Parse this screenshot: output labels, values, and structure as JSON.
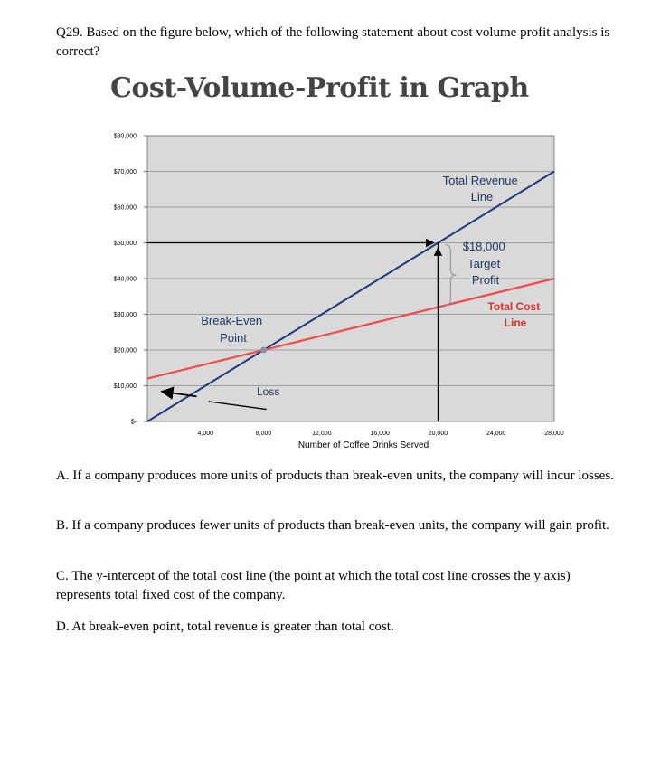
{
  "question": {
    "text": "Q29.  Based on the figure below, which of the following statement about cost volume profit analysis is correct?"
  },
  "graph_title": "Cost-Volume-Profit in Graph",
  "colors": {
    "revenue_line": "#1f3a7a",
    "cost_line": "#f04a4a",
    "plot_bg": "#d9d9d9",
    "gridline": "#8a8a8a",
    "annotation_text": "#1f3864",
    "cost_label": "#e03030"
  },
  "chart_data": {
    "type": "line",
    "title": "Cost-Volume-Profit in Graph",
    "xlabel": "Number of Coffee Drinks Served",
    "ylabel": "",
    "xlim": [
      0,
      28000
    ],
    "ylim": [
      0,
      80000
    ],
    "x_ticks": [
      "4,000",
      "8,000",
      "12,000",
      "16,000",
      "20,000",
      "24,000",
      "28,000"
    ],
    "x_tick_values": [
      4000,
      8000,
      12000,
      16000,
      20000,
      24000,
      28000
    ],
    "y_ticks": [
      "$-",
      "$10,000",
      "$20,000",
      "$30,000",
      "$40,000",
      "$50,000",
      "$60,000",
      "$70,000",
      "$80,000"
    ],
    "y_tick_values": [
      0,
      10000,
      20000,
      30000,
      40000,
      50000,
      60000,
      70000,
      80000
    ],
    "grid": true,
    "series": [
      {
        "name": "Total Revenue Line",
        "x": [
          0,
          28000
        ],
        "y": [
          0,
          70000
        ]
      },
      {
        "name": "Total Cost Line",
        "x": [
          0,
          28000
        ],
        "y": [
          12000,
          40000
        ]
      }
    ],
    "annotations": {
      "break_even": "Break-Even Point",
      "break_even_point": {
        "x": 8000,
        "y": 20000
      },
      "loss": "Loss",
      "target_profit": "$18,000 Target Profit",
      "target_x": 20000,
      "target_revenue": 50000,
      "target_cost": 32000
    },
    "labels": {
      "revenue_line_1": "Total Revenue",
      "revenue_line_2": "Line",
      "break_even_1": "Break-Even",
      "break_even_2": "Point",
      "loss": "Loss",
      "profit_1": "$18,000",
      "profit_2": "Target",
      "profit_3": "Profit",
      "cost_line_1": "Total Cost",
      "cost_line_2": "Line"
    }
  },
  "options": {
    "a": "A. If a company produces more units of products than break-even units, the company will incur losses.",
    "b": "B. If a company produces fewer units of products than break-even units, the company will gain profit.",
    "c": "C. The y-intercept of the total cost line (the point at which the total cost line crosses the y axis) represents total fixed cost of the company.",
    "d": "D. At break-even point, total revenue is greater than total cost."
  }
}
